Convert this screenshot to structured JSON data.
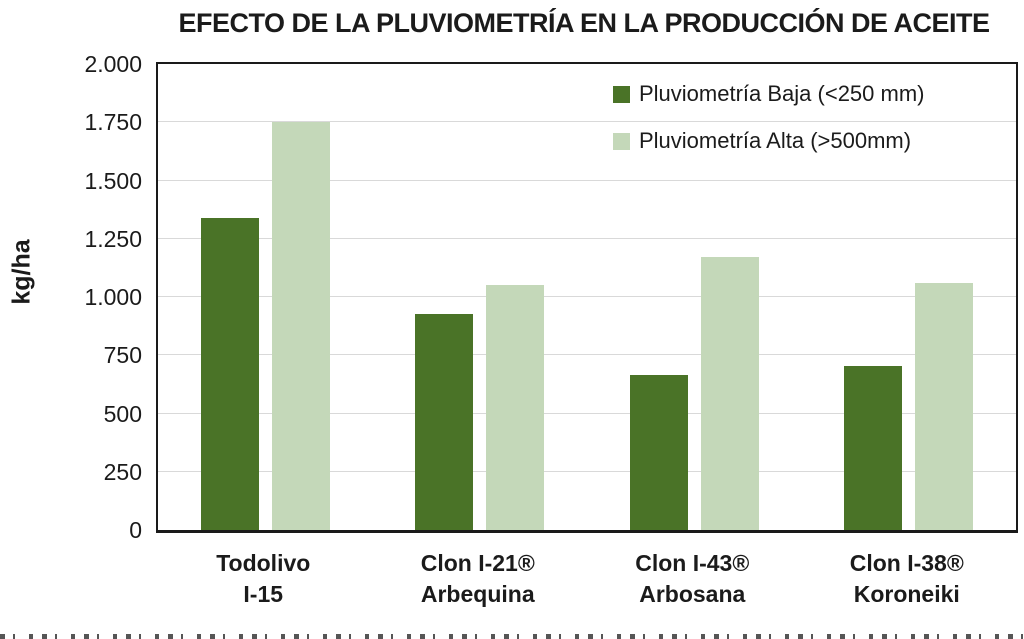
{
  "chart_data": {
    "type": "bar",
    "title": "EFECTO DE LA PLUVIOMETRÍA EN LA PRODUCCIÓN DE ACEITE",
    "ylabel": "kg/ha",
    "xlabel": "",
    "ylim": [
      0,
      2000
    ],
    "ytick_step": 250,
    "ytick_labels": [
      "0",
      "250",
      "500",
      "750",
      "1.000",
      "1.250",
      "1.500",
      "1.750",
      "2.000"
    ],
    "grid": true,
    "gridline_color": "#d9d9d9",
    "legend_position": "top-right-inside",
    "categories": [
      {
        "line1": "Todolivo",
        "line2": "I-15"
      },
      {
        "line1": "Clon I-21®",
        "line2": "Arbequina"
      },
      {
        "line1": "Clon I-43®",
        "line2": "Arbosana"
      },
      {
        "line1": "Clon I-38®",
        "line2": "Koroneiki"
      }
    ],
    "series": [
      {
        "name": "Pluviometría Baja (<250 mm)",
        "color": "#4a7327",
        "values": [
          1340,
          925,
          665,
          705
        ]
      },
      {
        "name": "Pluviometría Alta (>500mm)",
        "color": "#c4d8b9",
        "values": [
          1750,
          1050,
          1170,
          1060
        ]
      }
    ]
  }
}
